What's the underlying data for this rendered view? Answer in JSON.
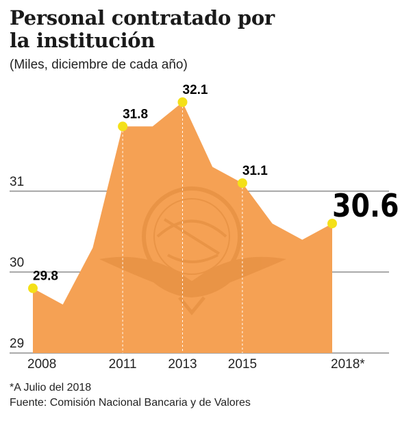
{
  "chart_data": {
    "type": "area",
    "title_line1": "Personal contratado por",
    "title_line2": "la institución",
    "subtitle": "(Miles, diciembre de cada año)",
    "x": [
      2008,
      2009,
      2010,
      2011,
      2012,
      2013,
      2014,
      2015,
      2016,
      2017,
      2018
    ],
    "values": [
      29.8,
      29.6,
      30.3,
      31.8,
      31.8,
      32.1,
      31.3,
      31.1,
      30.6,
      30.4,
      30.6
    ],
    "x_tick_labels": [
      {
        "x": 2008,
        "label": "2008"
      },
      {
        "x": 2011,
        "label": "2011"
      },
      {
        "x": 2013,
        "label": "2013"
      },
      {
        "x": 2015,
        "label": "2015"
      },
      {
        "x": 2018,
        "label": "2018*"
      }
    ],
    "y_ticks": [
      29,
      30,
      31
    ],
    "ylim": [
      29,
      32.1
    ],
    "highlight_points": [
      {
        "x": 2008,
        "value": 29.8,
        "label": "29.8"
      },
      {
        "x": 2011,
        "value": 31.8,
        "label": "31.8"
      },
      {
        "x": 2013,
        "value": 32.1,
        "label": "32.1"
      },
      {
        "x": 2015,
        "value": 31.1,
        "label": "31.1"
      },
      {
        "x": 2018,
        "value": 30.6,
        "label": "30.6",
        "emphasis": true
      }
    ],
    "colors": {
      "area": "#f5a154",
      "marker": "#f4e018",
      "grid": "#555555",
      "watermark": "#e08a3c"
    },
    "grid": true,
    "footnote": "*A Julio del 2018",
    "source": "Fuente: Comisión Nacional Bancaria y de Valores"
  }
}
